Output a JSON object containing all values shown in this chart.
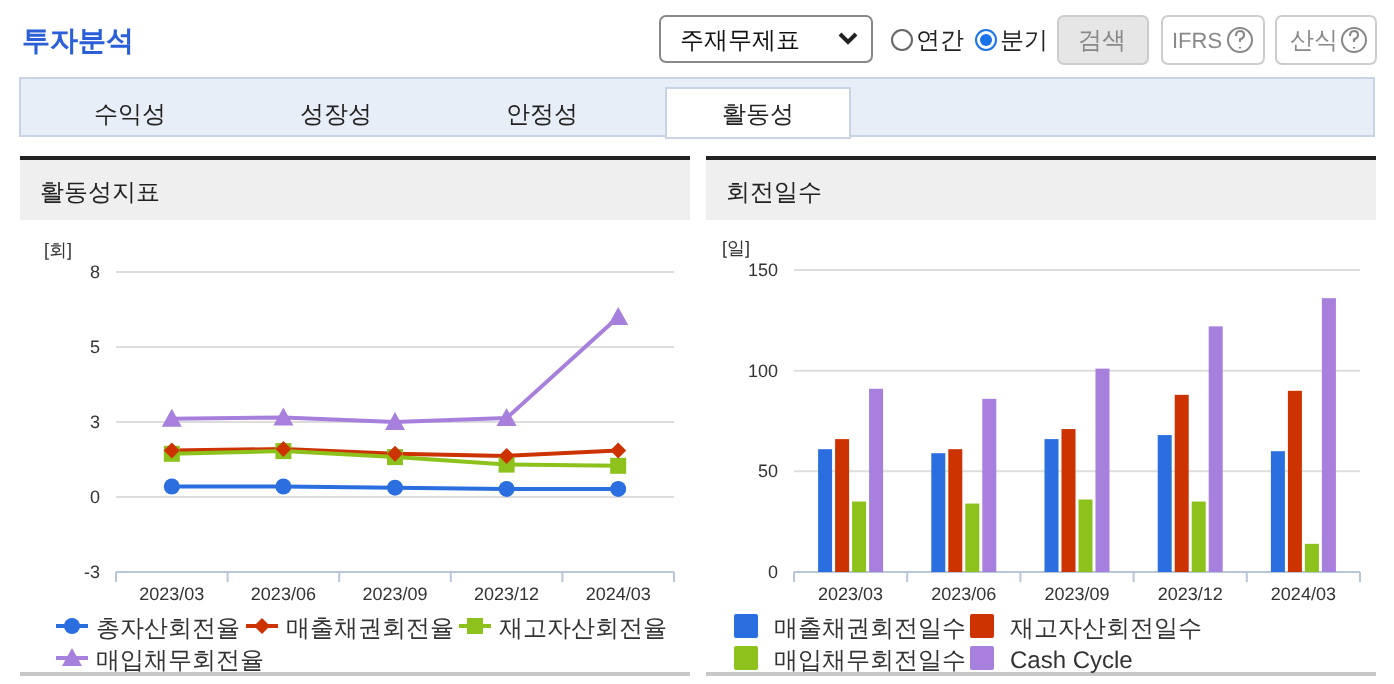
{
  "chart_data": [
    {
      "type": "other",
      "title": "투자분석",
      "annotations": [
        "주재무제표",
        "연간",
        "분기",
        "검색",
        "IFRS",
        "산식",
        "수익성",
        "성장성",
        "안정성",
        "활동성"
      ]
    },
    {
      "type": "line",
      "title": "활동성지표",
      "ylabel": "[회]",
      "categories": [
        "2023/03",
        "2023/06",
        "2023/09",
        "2023/12",
        "2024/03"
      ],
      "ylim": [
        -2.5,
        7.5
      ],
      "yticks": [
        {
          "value": -2.5,
          "label": "-3"
        },
        {
          "value": 0,
          "label": "0"
        },
        {
          "value": 2.5,
          "label": "3"
        },
        {
          "value": 5,
          "label": "5"
        },
        {
          "value": 7.5,
          "label": "8"
        }
      ],
      "grid": "y",
      "legend": "bottom",
      "line_style": "solid",
      "series": [
        {
          "name": "총자산회전율",
          "color": "#2a6ee0",
          "marker": "circle",
          "values": [
            0.35,
            0.35,
            0.31,
            0.27,
            0.27
          ]
        },
        {
          "name": "매출채권회전율",
          "color": "#cc3300",
          "marker": "diamond",
          "values": [
            1.55,
            1.6,
            1.44,
            1.37,
            1.55
          ]
        },
        {
          "name": "재고자산회전율",
          "color": "#8cc21b",
          "marker": "square",
          "values": [
            1.44,
            1.53,
            1.33,
            1.08,
            1.04
          ]
        },
        {
          "name": "매입채무회전율",
          "color": "#a77fdc",
          "marker": "triangle",
          "values": [
            2.61,
            2.65,
            2.5,
            2.63,
            6.0
          ]
        }
      ]
    },
    {
      "type": "bar",
      "title": "회전일수",
      "ylabel": "[일]",
      "categories": [
        "2023/03",
        "2023/06",
        "2023/09",
        "2023/12",
        "2024/03"
      ],
      "ylim": [
        0,
        150
      ],
      "yticks": [
        0,
        50,
        100,
        150
      ],
      "grid": "y",
      "legend": "bottom",
      "series": [
        {
          "name": "매출채권회전일수",
          "color": "#2a6ee0",
          "values": [
            61,
            59,
            66,
            68,
            60
          ]
        },
        {
          "name": "재고자산회전일수",
          "color": "#cc3300",
          "values": [
            66,
            61,
            71,
            88,
            90
          ]
        },
        {
          "name": "매입채무회전일수",
          "color": "#8cc21b",
          "values": [
            35,
            34,
            36,
            35,
            14
          ]
        },
        {
          "name": "Cash Cycle",
          "color": "#a77fdc",
          "values": [
            91,
            86,
            101,
            122,
            136
          ]
        }
      ]
    }
  ]
}
